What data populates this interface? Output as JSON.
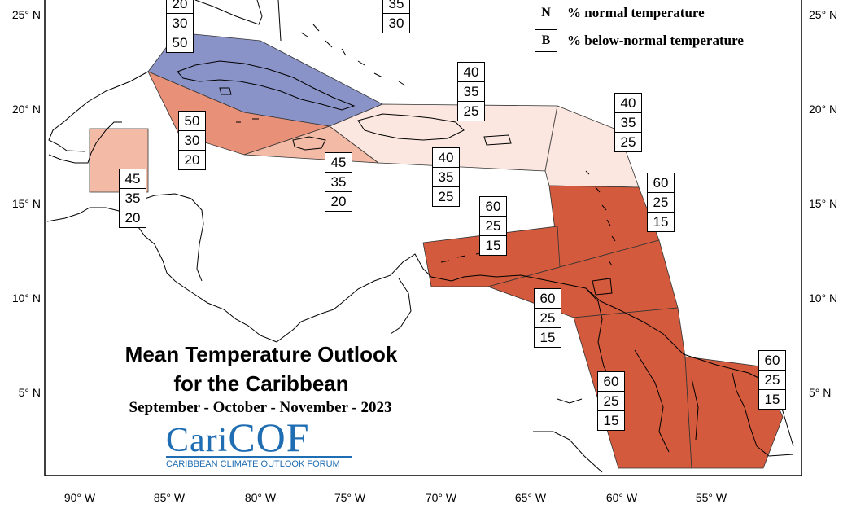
{
  "title_line1": "Mean Temperature Outlook",
  "title_line2": "for the Caribbean",
  "subtitle": "September - October - November - 2023",
  "logo": {
    "name_part1": "Cari",
    "name_part2": "COF",
    "tagline": "CARIBBEAN CLIMATE OUTLOOK FORUM"
  },
  "legend": [
    {
      "key": "N",
      "text": "% normal temperature"
    },
    {
      "key": "B",
      "text": "% below-normal temperature"
    }
  ],
  "lat_labels": [
    "25° N",
    "20° N",
    "15° N",
    "10° N",
    "5° N"
  ],
  "lon_labels": [
    "90° W",
    "85° W",
    "80° W",
    "75° W",
    "70° W",
    "65° W",
    "60° W",
    "55° W"
  ],
  "colors": {
    "below_50": "#8a93c8",
    "above_50": "#e99078",
    "above_45": "#f3bba6",
    "above_40": "#fbe7df",
    "above_60": "#d35a3c",
    "outline": "#222222"
  },
  "regions": [
    {
      "id": "bahamas-north",
      "values": [
        "35",
        "30"
      ]
    },
    {
      "id": "cuba",
      "values": [
        "20",
        "30",
        "50"
      ]
    },
    {
      "id": "cayman-jamaica-west",
      "values": [
        "50",
        "30",
        "20"
      ]
    },
    {
      "id": "belize",
      "values": [
        "45",
        "35",
        "20"
      ]
    },
    {
      "id": "jamaica-haiti",
      "values": [
        "45",
        "35",
        "20"
      ]
    },
    {
      "id": "turks-caicos-greater-antilles-north",
      "values": [
        "40",
        "35",
        "25"
      ]
    },
    {
      "id": "hispaniola-puerto-rico",
      "values": [
        "40",
        "35",
        "25"
      ]
    },
    {
      "id": "leeward-islands",
      "values": [
        "40",
        "35",
        "25"
      ]
    },
    {
      "id": "windward-islands",
      "values": [
        "60",
        "25",
        "15"
      ]
    },
    {
      "id": "abc-islands",
      "values": [
        "60",
        "25",
        "15"
      ]
    },
    {
      "id": "trinidad-guyana",
      "values": [
        "60",
        "25",
        "15"
      ]
    },
    {
      "id": "guyana-suriname",
      "values": [
        "60",
        "25",
        "15"
      ]
    },
    {
      "id": "french-guiana",
      "values": [
        "60",
        "25",
        "15"
      ]
    }
  ]
}
